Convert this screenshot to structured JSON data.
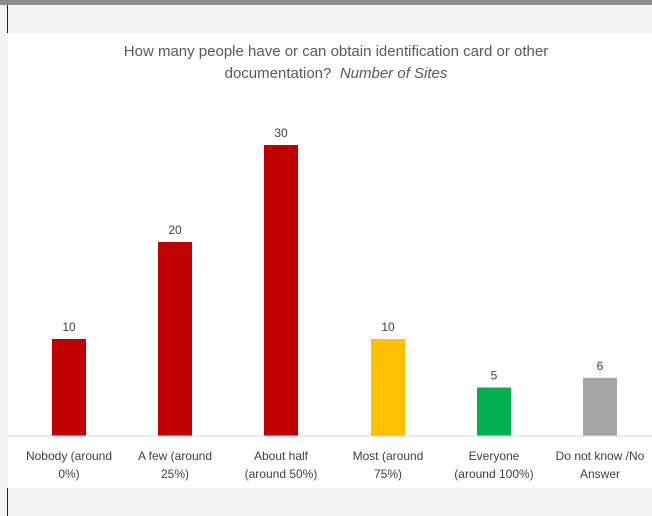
{
  "chart_data": {
    "type": "bar",
    "title": "How many people have or can obtain identification card or other documentation?",
    "subtitle": "Number of Sites",
    "title_lines": [
      "How many people have or can obtain identification card or other",
      "documentation?"
    ],
    "categories": [
      [
        "Nobody (around",
        "0%)"
      ],
      [
        "A few (around",
        "25%)"
      ],
      [
        "About half",
        "(around 50%)"
      ],
      [
        "Most (around",
        "75%)"
      ],
      [
        "Everyone",
        "(around 100%)"
      ],
      [
        "Do not know /No",
        "Answer"
      ]
    ],
    "values": [
      10,
      20,
      30,
      10,
      5,
      6
    ],
    "colors": [
      "#c00000",
      "#c00000",
      "#c00000",
      "#ffc000",
      "#00b050",
      "#a5a5a5"
    ],
    "ylim": [
      0,
      30
    ],
    "grid": false,
    "legend": "none",
    "xlabel": "",
    "ylabel": ""
  }
}
